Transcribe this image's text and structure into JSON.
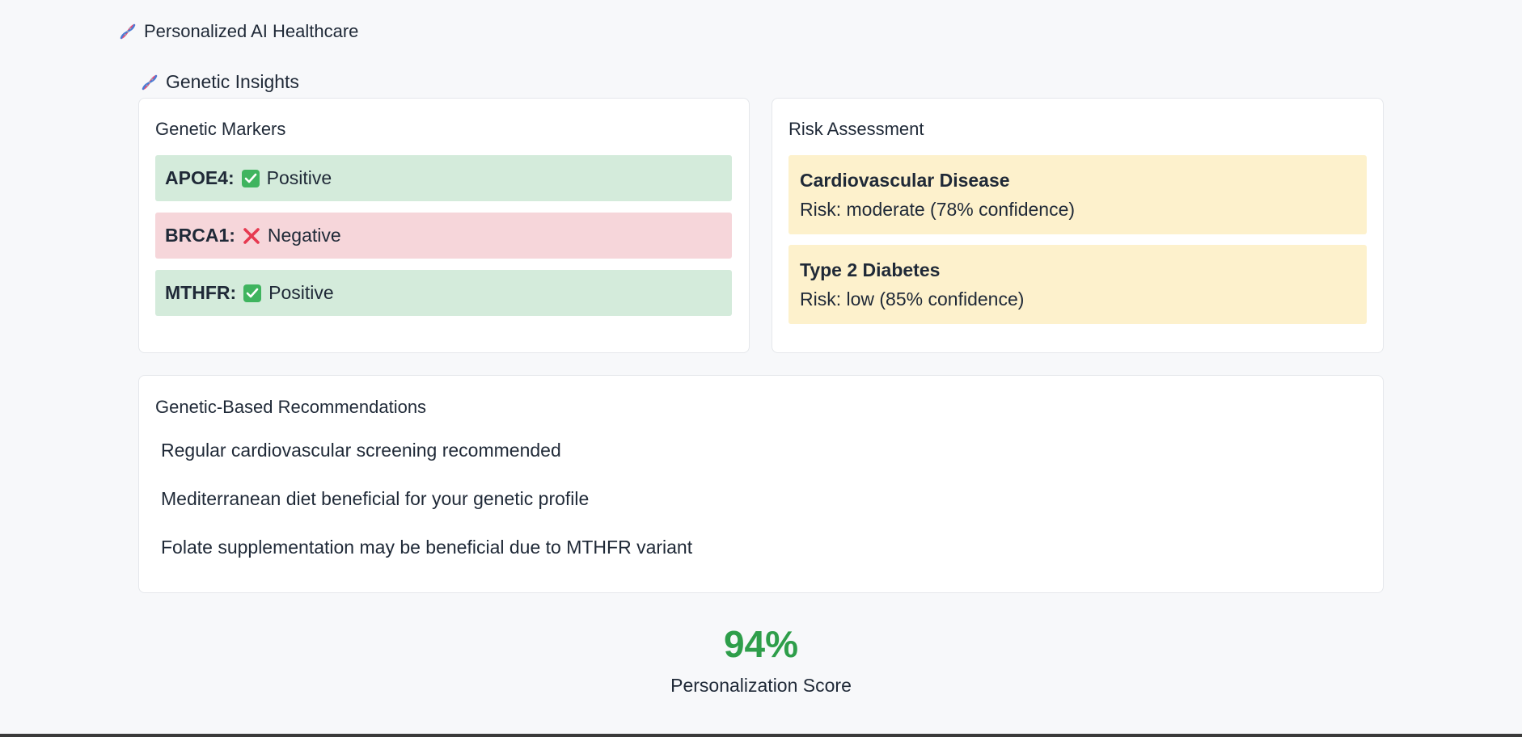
{
  "app": {
    "title": "Personalized AI Healthcare",
    "icon": "dna-icon"
  },
  "section": {
    "title": "Genetic Insights",
    "icon": "dna-icon"
  },
  "markers": {
    "title": "Genetic Markers",
    "items": [
      {
        "name": "APOE4:",
        "status": "Positive",
        "icon": "check-box-icon",
        "color": "#d4ebdb"
      },
      {
        "name": "BRCA1:",
        "status": "Negative",
        "icon": "cross-mark-icon",
        "color": "#f6d6da"
      },
      {
        "name": "MTHFR:",
        "status": "Positive",
        "icon": "check-box-icon",
        "color": "#d4ebdb"
      }
    ]
  },
  "risk": {
    "title": "Risk Assessment",
    "items": [
      {
        "name": "Cardiovascular Disease",
        "detail": "Risk: moderate (78% confidence)",
        "color": "#fdf1cc"
      },
      {
        "name": "Type 2 Diabetes",
        "detail": "Risk: low (85% confidence)",
        "color": "#fdf1cc"
      }
    ]
  },
  "recommendations": {
    "title": "Genetic-Based Recommendations",
    "items": [
      "Regular cardiovascular screening recommended",
      "Mediterranean diet beneficial for your genetic profile",
      "Folate supplementation may be beneficial due to MTHFR variant"
    ]
  },
  "score": {
    "value": "94%",
    "label": "Personalization Score",
    "color": "#2e9e4a"
  }
}
